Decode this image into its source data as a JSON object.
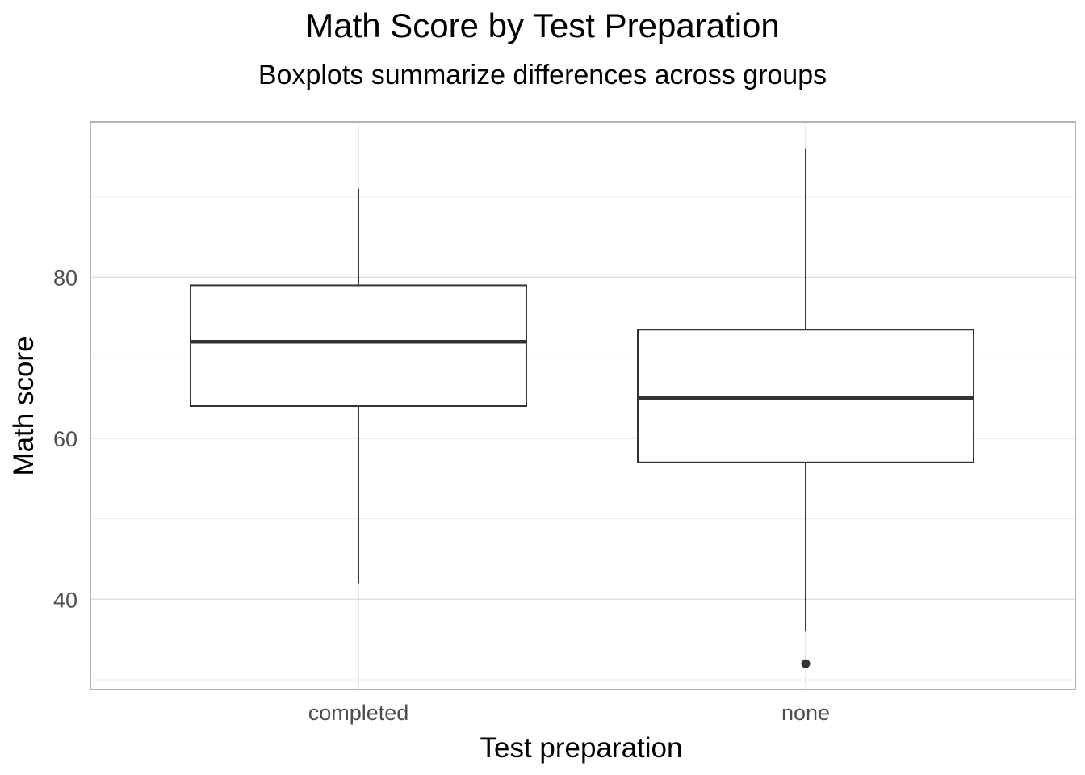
{
  "chart_data": {
    "type": "boxplot",
    "title": "Math Score by Test Preparation",
    "subtitle": "Boxplots summarize differences across groups",
    "xlabel": "Test preparation",
    "ylabel": "Math score",
    "categories": [
      "completed",
      "none"
    ],
    "boxes": [
      {
        "category": "completed",
        "whisker_low": 42,
        "q1": 64,
        "median": 72,
        "q3": 79,
        "whisker_high": 91,
        "outliers": []
      },
      {
        "category": "none",
        "whisker_low": 36,
        "q1": 57,
        "median": 65,
        "q3": 73.5,
        "whisker_high": 96,
        "outliers": [
          32
        ]
      }
    ],
    "ylim": [
      28.9,
      99.2
    ],
    "yticks": [
      40,
      60,
      80
    ],
    "ytick_labels": [
      "40",
      "60",
      "80"
    ],
    "y_minor_ticks": [
      30,
      50,
      70,
      90
    ],
    "grid": true,
    "legend": "none",
    "colors": {
      "box_stroke": "#333333",
      "box_fill": "#ffffff",
      "grid_major": "#dedede",
      "grid_minor": "#f0f0f0",
      "panel_border": "#b3b3b3",
      "tick_text": "#4d4d4d",
      "title_text": "#000000"
    }
  }
}
